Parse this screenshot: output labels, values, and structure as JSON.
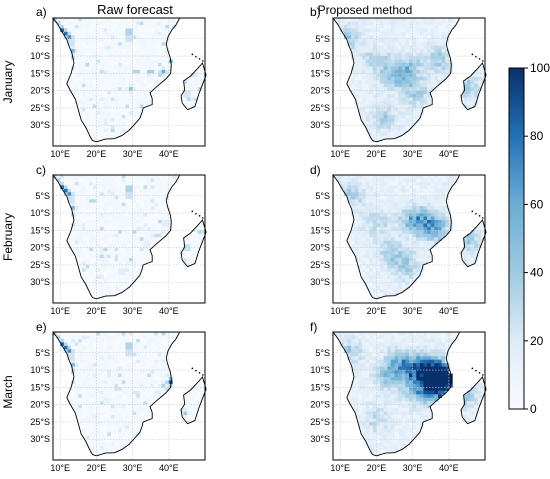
{
  "chart_data": {
    "type": "heatmap",
    "columns": [
      "Raw forecast",
      "Proposed method"
    ],
    "rows": [
      "January",
      "February",
      "March"
    ],
    "panel_labels": [
      "a)",
      "b)",
      "c)",
      "d)",
      "e)",
      "f)"
    ],
    "lon_ticks": [
      "10°E",
      "20°E",
      "30°E",
      "40°E"
    ],
    "lat_ticks": [
      "5°S",
      "10°S",
      "15°S",
      "20°S",
      "25°S",
      "30°S"
    ],
    "lon_range": [
      8,
      50
    ],
    "lat_range": [
      -36,
      1
    ],
    "colorbar": {
      "min": 0,
      "max": 100,
      "ticks": [
        "0",
        "20",
        "40",
        "60",
        "80",
        "100"
      ],
      "colormap": "Blues"
    },
    "grid": true,
    "colors": {
      "low": "#f7fbff",
      "high": "#08306b",
      "coast": "#000000",
      "grid": "#c8c8c8"
    }
  }
}
